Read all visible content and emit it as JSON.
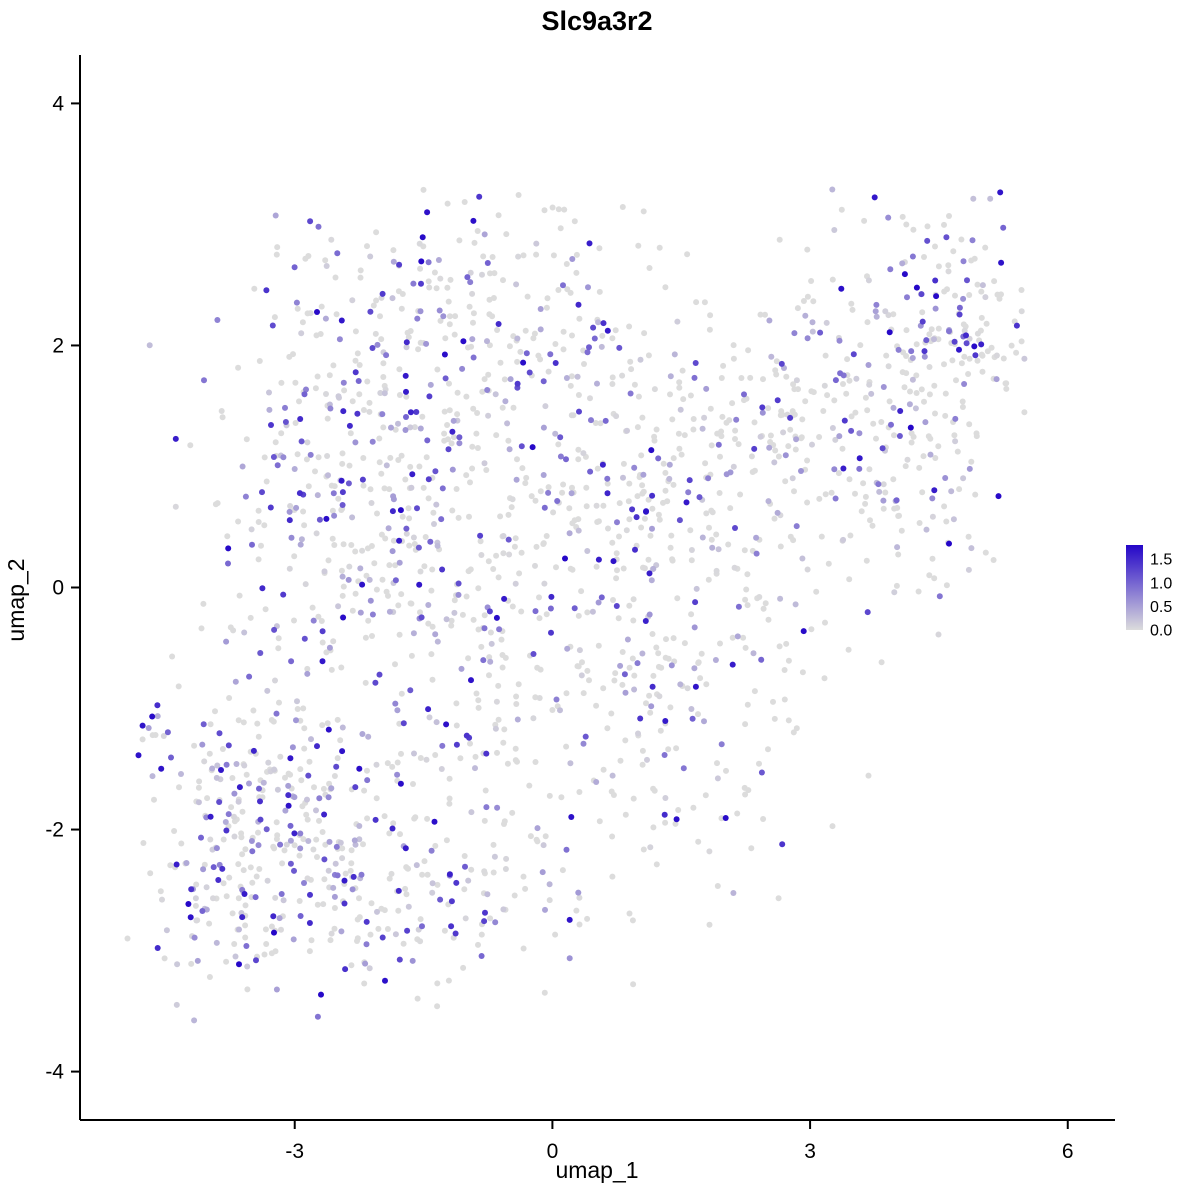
{
  "chart_data": {
    "type": "scatter",
    "title": "Slc9a3r2",
    "xlabel": "umap_1",
    "ylabel": "umap_2",
    "xlim": [
      -5.5,
      6.55
    ],
    "ylim": [
      -4.4,
      4.4
    ],
    "xticks": [
      {
        "value": -3,
        "label": "-3"
      },
      {
        "value": 0,
        "label": "0"
      },
      {
        "value": 3,
        "label": "3"
      },
      {
        "value": 6,
        "label": "6"
      }
    ],
    "yticks": [
      {
        "value": -4,
        "label": "-4"
      },
      {
        "value": -2,
        "label": "-2"
      },
      {
        "value": 0,
        "label": "0"
      },
      {
        "value": 2,
        "label": "2"
      },
      {
        "value": 4,
        "label": "4"
      }
    ],
    "colorbar": {
      "ticks": [
        {
          "value": 1.5,
          "label": "1.5"
        },
        {
          "value": 1.0,
          "label": "1.0"
        },
        {
          "value": 0.5,
          "label": "0.5"
        },
        {
          "value": 0.0,
          "label": "0.0"
        }
      ],
      "max": 1.8,
      "low_color": "#DCDCDC",
      "high_color": "#2406C8"
    },
    "value_max": 1.75,
    "seed": 42,
    "point_extent": {
      "x": [
        -4.95,
        5.65
      ],
      "y": [
        -3.6,
        3.3
      ]
    },
    "clusters": [
      {
        "cx": -3.35,
        "cy": -2.15,
        "sx": 0.75,
        "sy": 0.65,
        "n": 330,
        "expr_frac": 0.55
      },
      {
        "cx": -1.4,
        "cy": -2.45,
        "sx": 0.8,
        "sy": 0.5,
        "n": 150,
        "expr_frac": 0.5
      },
      {
        "cx": -2.35,
        "cy": 0.9,
        "sx": 0.85,
        "sy": 1.1,
        "n": 330,
        "expr_frac": 0.5
      },
      {
        "cx": -1.0,
        "cy": 2.2,
        "sx": 1.0,
        "sy": 0.5,
        "n": 170,
        "expr_frac": 0.45
      },
      {
        "cx": -0.5,
        "cy": 0.0,
        "sx": 1.2,
        "sy": 1.1,
        "n": 330,
        "expr_frac": 0.45
      },
      {
        "cx": 0.9,
        "cy": 1.1,
        "sx": 0.9,
        "sy": 0.9,
        "n": 170,
        "expr_frac": 0.4
      },
      {
        "cx": 2.3,
        "cy": 0.6,
        "sx": 0.9,
        "sy": 0.8,
        "n": 150,
        "expr_frac": 0.35
      },
      {
        "cx": 3.3,
        "cy": 1.4,
        "sx": 0.8,
        "sy": 0.6,
        "n": 150,
        "expr_frac": 0.4
      },
      {
        "cx": 4.6,
        "cy": 2.3,
        "sx": 0.5,
        "sy": 0.45,
        "n": 160,
        "expr_frac": 0.45
      },
      {
        "cx": 4.5,
        "cy": 0.9,
        "sx": 0.5,
        "sy": 0.6,
        "n": 60,
        "expr_frac": 0.4
      },
      {
        "cx": 1.3,
        "cy": -1.0,
        "sx": 0.9,
        "sy": 0.8,
        "n": 120,
        "expr_frac": 0.4
      },
      {
        "cx": -4.65,
        "cy": -1.3,
        "sx": 0.12,
        "sy": 0.18,
        "n": 9,
        "expr_frac": 0.5
      }
    ],
    "style": {
      "point_radius": 3,
      "axis_color": "#000000",
      "background": "#FFFFFF"
    }
  }
}
